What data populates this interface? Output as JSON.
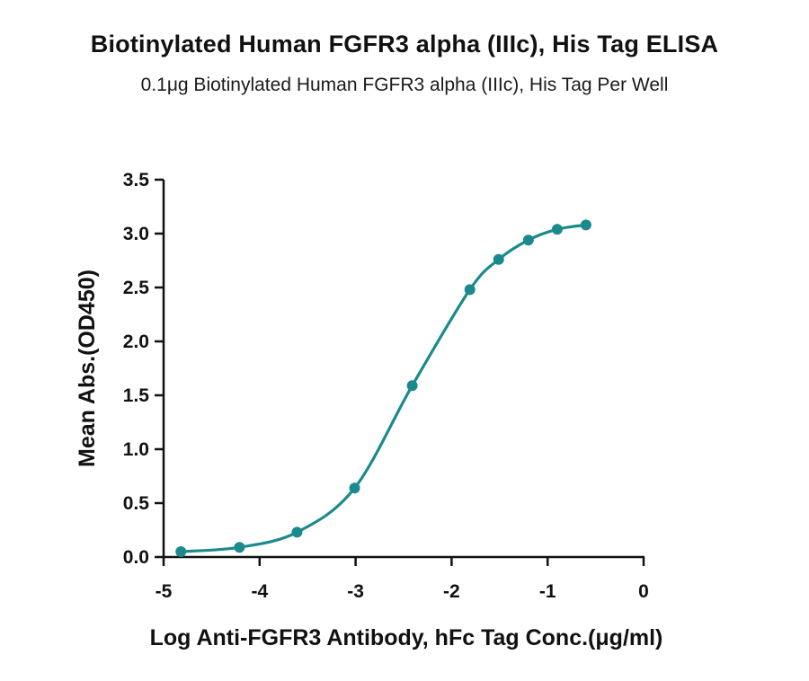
{
  "chart_data": {
    "type": "line",
    "title": "Biotinylated Human FGFR3 alpha (IIIc), His Tag ELISA",
    "subtitle": "0.1μg Biotinylated Human FGFR3 alpha (IIIc), His Tag Per Well",
    "xlabel": "Log Anti-FGFR3 Antibody, hFc Tag Conc.(μg/ml)",
    "ylabel": "Mean Abs.(OD450)",
    "xlim": [
      -5,
      0
    ],
    "ylim": [
      0,
      3.5
    ],
    "x_ticks": [
      "-5",
      "-4",
      "-3",
      "-2",
      "-1",
      "0"
    ],
    "y_ticks": [
      "0.0",
      "0.5",
      "1.0",
      "1.5",
      "2.0",
      "2.5",
      "3.0",
      "3.5"
    ],
    "grid": false,
    "legend": "none",
    "color": "#1b8a8c",
    "series": [
      {
        "x": [
          -4.82,
          -4.21,
          -3.61,
          -3.01,
          -2.41,
          -1.81,
          -1.51,
          -1.2,
          -0.9,
          -0.6
        ],
        "y": [
          0.05,
          0.09,
          0.23,
          0.64,
          1.59,
          2.48,
          2.76,
          2.94,
          3.04,
          3.08
        ]
      }
    ]
  }
}
